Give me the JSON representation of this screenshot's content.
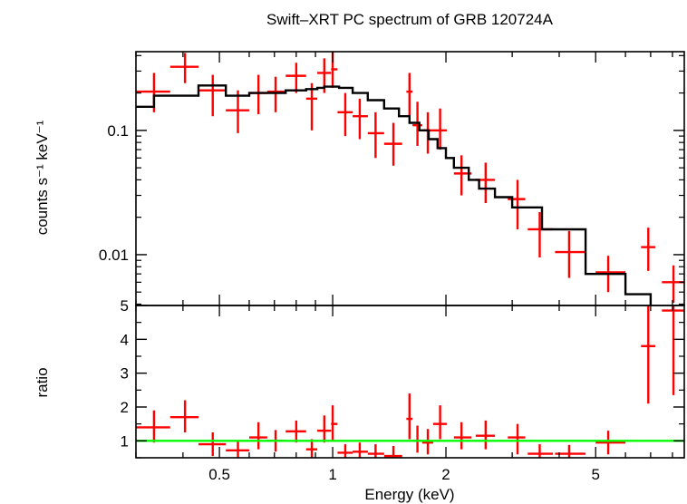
{
  "chart_data": {
    "type": "scatter",
    "title": "Swift–XRT PC spectrum of GRB 120724A",
    "xlabel": "Energy (keV)",
    "x_scale": "log",
    "xlim": [
      0.3,
      8.6
    ],
    "x_ticks": [
      {
        "value": 0.5,
        "label": "0.5"
      },
      {
        "value": 1,
        "label": "1"
      },
      {
        "value": 2,
        "label": "2"
      },
      {
        "value": 5,
        "label": "5"
      }
    ],
    "colors": {
      "data": "#ff0000",
      "model": "#000000",
      "unity": "#00ff00",
      "axes": "#000000"
    },
    "panels": [
      {
        "name": "spectrum",
        "ylabel": "counts s⁻¹ keV⁻¹",
        "y_scale": "log",
        "ylim": [
          0.0039,
          0.43
        ],
        "y_ticks": [
          {
            "value": 0.1,
            "label": "0.1"
          },
          {
            "value": 0.01,
            "label": "0.01"
          }
        ],
        "series": [
          {
            "kind": "errorbar",
            "points": [
              {
                "x": 0.335,
                "xlo": 0.3,
                "xhi": 0.37,
                "y": 0.205,
                "ylo": 0.14,
                "yhi": 0.29
              },
              {
                "x": 0.405,
                "xlo": 0.37,
                "xhi": 0.44,
                "y": 0.325,
                "ylo": 0.24,
                "yhi": 0.42
              },
              {
                "x": 0.48,
                "xlo": 0.44,
                "xhi": 0.52,
                "y": 0.21,
                "ylo": 0.13,
                "yhi": 0.28
              },
              {
                "x": 0.56,
                "xlo": 0.52,
                "xhi": 0.6,
                "y": 0.145,
                "ylo": 0.095,
                "yhi": 0.21
              },
              {
                "x": 0.635,
                "xlo": 0.6,
                "xhi": 0.67,
                "y": 0.2,
                "ylo": 0.135,
                "yhi": 0.28
              },
              {
                "x": 0.705,
                "xlo": 0.67,
                "xhi": 0.75,
                "y": 0.205,
                "ylo": 0.14,
                "yhi": 0.27
              },
              {
                "x": 0.8,
                "xlo": 0.75,
                "xhi": 0.85,
                "y": 0.275,
                "ylo": 0.2,
                "yhi": 0.35
              },
              {
                "x": 0.88,
                "xlo": 0.85,
                "xhi": 0.91,
                "y": 0.18,
                "ylo": 0.1,
                "yhi": 0.24
              },
              {
                "x": 0.95,
                "xlo": 0.91,
                "xhi": 0.99,
                "y": 0.29,
                "ylo": 0.2,
                "yhi": 0.38
              },
              {
                "x": 1.0,
                "xlo": 0.99,
                "xhi": 1.03,
                "y": 0.31,
                "ylo": 0.22,
                "yhi": 0.43
              },
              {
                "x": 1.08,
                "xlo": 1.03,
                "xhi": 1.13,
                "y": 0.14,
                "ylo": 0.09,
                "yhi": 0.2
              },
              {
                "x": 1.18,
                "xlo": 1.13,
                "xhi": 1.24,
                "y": 0.13,
                "ylo": 0.085,
                "yhi": 0.18
              },
              {
                "x": 1.3,
                "xlo": 1.24,
                "xhi": 1.37,
                "y": 0.095,
                "ylo": 0.06,
                "yhi": 0.14
              },
              {
                "x": 1.45,
                "xlo": 1.37,
                "xhi": 1.53,
                "y": 0.078,
                "ylo": 0.052,
                "yhi": 0.115
              },
              {
                "x": 1.6,
                "xlo": 1.57,
                "xhi": 1.63,
                "y": 0.205,
                "ylo": 0.13,
                "yhi": 0.29
              },
              {
                "x": 1.68,
                "xlo": 1.63,
                "xhi": 1.73,
                "y": 0.11,
                "ylo": 0.075,
                "yhi": 0.17
              },
              {
                "x": 1.79,
                "xlo": 1.73,
                "xhi": 1.85,
                "y": 0.1,
                "ylo": 0.065,
                "yhi": 0.14
              },
              {
                "x": 1.93,
                "xlo": 1.85,
                "xhi": 2.01,
                "y": 0.1,
                "ylo": 0.07,
                "yhi": 0.15
              },
              {
                "x": 2.2,
                "xlo": 2.1,
                "xhi": 2.34,
                "y": 0.045,
                "ylo": 0.03,
                "yhi": 0.063
              },
              {
                "x": 2.55,
                "xlo": 2.4,
                "xhi": 2.7,
                "y": 0.04,
                "ylo": 0.026,
                "yhi": 0.055
              },
              {
                "x": 3.1,
                "xlo": 2.92,
                "xhi": 3.25,
                "y": 0.028,
                "ylo": 0.016,
                "yhi": 0.04
              },
              {
                "x": 3.55,
                "xlo": 3.3,
                "xhi": 3.85,
                "y": 0.016,
                "ylo": 0.0095,
                "yhi": 0.022
              },
              {
                "x": 4.25,
                "xlo": 3.9,
                "xhi": 4.7,
                "y": 0.0105,
                "ylo": 0.0065,
                "yhi": 0.0155
              },
              {
                "x": 5.4,
                "xlo": 5.0,
                "xhi": 6.0,
                "y": 0.0072,
                "ylo": 0.005,
                "yhi": 0.0098
              },
              {
                "x": 6.9,
                "xlo": 6.6,
                "xhi": 7.2,
                "y": 0.0115,
                "ylo": 0.0074,
                "yhi": 0.0165
              },
              {
                "x": 8.05,
                "xlo": 7.5,
                "xhi": 8.6,
                "y": 0.006,
                "ylo": 0.0041,
                "yhi": 0.0082
              }
            ]
          },
          {
            "kind": "model-step",
            "edges": [
              0.3,
              0.335,
              0.44,
              0.52,
              0.6,
              0.75,
              0.85,
              0.91,
              0.95,
              1.04,
              1.13,
              1.24,
              1.37,
              1.5,
              1.6,
              1.7,
              1.8,
              1.9,
              2.0,
              2.1,
              2.3,
              2.45,
              2.7,
              3.0,
              3.6,
              4.7,
              6.0,
              7.0
            ],
            "values": [
              0.155,
              0.19,
              0.23,
              0.19,
              0.2,
              0.21,
              0.215,
              0.22,
              0.225,
              0.22,
              0.2,
              0.175,
              0.15,
              0.13,
              0.115,
              0.1,
              0.085,
              0.072,
              0.06,
              0.05,
              0.04,
              0.034,
              0.029,
              0.024,
              0.016,
              0.007,
              0.0048
            ]
          }
        ]
      },
      {
        "name": "ratio",
        "ylabel": "ratio",
        "y_scale": "linear",
        "ylim": [
          0.5,
          5.0
        ],
        "y_ticks": [
          {
            "value": 1,
            "label": "1"
          },
          {
            "value": 2,
            "label": "2"
          },
          {
            "value": 3,
            "label": "3"
          },
          {
            "value": 4,
            "label": "4"
          },
          {
            "value": 5,
            "label": "5"
          }
        ],
        "series": [
          {
            "kind": "errorbar",
            "points": [
              {
                "x": 0.335,
                "xlo": 0.3,
                "xhi": 0.37,
                "y": 1.4,
                "ylo": 0.95,
                "yhi": 1.9
              },
              {
                "x": 0.405,
                "xlo": 0.37,
                "xhi": 0.44,
                "y": 1.7,
                "ylo": 1.25,
                "yhi": 2.2
              },
              {
                "x": 0.48,
                "xlo": 0.44,
                "xhi": 0.52,
                "y": 0.9,
                "ylo": 0.55,
                "yhi": 1.25
              },
              {
                "x": 0.56,
                "xlo": 0.52,
                "xhi": 0.6,
                "y": 0.72,
                "ylo": 0.5,
                "yhi": 1.0
              },
              {
                "x": 0.635,
                "xlo": 0.6,
                "xhi": 0.67,
                "y": 1.1,
                "ylo": 0.75,
                "yhi": 1.55
              },
              {
                "x": 0.705,
                "xlo": 0.67,
                "xhi": 0.75,
                "y": 1.0,
                "ylo": 0.68,
                "yhi": 1.32
              },
              {
                "x": 0.8,
                "xlo": 0.75,
                "xhi": 0.85,
                "y": 1.28,
                "ylo": 0.95,
                "yhi": 1.6
              },
              {
                "x": 0.88,
                "xlo": 0.85,
                "xhi": 0.91,
                "y": 0.75,
                "ylo": 0.5,
                "yhi": 1.05
              },
              {
                "x": 0.95,
                "xlo": 0.91,
                "xhi": 0.99,
                "y": 1.3,
                "ylo": 0.95,
                "yhi": 1.75
              },
              {
                "x": 1.0,
                "xlo": 0.99,
                "xhi": 1.03,
                "y": 1.5,
                "ylo": 1.0,
                "yhi": 2.05
              },
              {
                "x": 1.08,
                "xlo": 1.03,
                "xhi": 1.13,
                "y": 0.65,
                "ylo": 0.5,
                "yhi": 0.9
              },
              {
                "x": 1.18,
                "xlo": 1.13,
                "xhi": 1.24,
                "y": 0.68,
                "ylo": 0.5,
                "yhi": 0.95
              },
              {
                "x": 1.3,
                "xlo": 1.24,
                "xhi": 1.37,
                "y": 0.62,
                "ylo": 0.5,
                "yhi": 0.9
              },
              {
                "x": 1.45,
                "xlo": 1.37,
                "xhi": 1.53,
                "y": 0.55,
                "ylo": 0.5,
                "yhi": 0.85
              },
              {
                "x": 1.6,
                "xlo": 1.57,
                "xhi": 1.63,
                "y": 1.65,
                "ylo": 1.05,
                "yhi": 2.4
              },
              {
                "x": 1.68,
                "xlo": 1.63,
                "xhi": 1.73,
                "y": 1.0,
                "ylo": 0.65,
                "yhi": 1.45
              },
              {
                "x": 1.79,
                "xlo": 1.73,
                "xhi": 1.85,
                "y": 0.95,
                "ylo": 0.6,
                "yhi": 1.35
              },
              {
                "x": 1.93,
                "xlo": 1.85,
                "xhi": 2.01,
                "y": 1.5,
                "ylo": 1.05,
                "yhi": 2.05
              },
              {
                "x": 2.2,
                "xlo": 2.1,
                "xhi": 2.34,
                "y": 1.1,
                "ylo": 0.75,
                "yhi": 1.55
              },
              {
                "x": 2.55,
                "xlo": 2.4,
                "xhi": 2.7,
                "y": 1.15,
                "ylo": 0.75,
                "yhi": 1.6
              },
              {
                "x": 3.1,
                "xlo": 2.92,
                "xhi": 3.25,
                "y": 1.1,
                "ylo": 0.6,
                "yhi": 1.5
              },
              {
                "x": 3.55,
                "xlo": 3.3,
                "xhi": 3.85,
                "y": 0.62,
                "ylo": 0.5,
                "yhi": 0.9
              },
              {
                "x": 4.25,
                "xlo": 3.9,
                "xhi": 4.7,
                "y": 0.62,
                "ylo": 0.5,
                "yhi": 0.88
              },
              {
                "x": 5.4,
                "xlo": 5.0,
                "xhi": 6.0,
                "y": 0.95,
                "ylo": 0.6,
                "yhi": 1.3
              },
              {
                "x": 6.9,
                "xlo": 6.6,
                "xhi": 7.2,
                "y": 3.8,
                "ylo": 2.1,
                "yhi": 5.0
              },
              {
                "x": 8.05,
                "xlo": 7.5,
                "xhi": 8.6,
                "y": 4.85,
                "ylo": 2.35,
                "yhi": 5.0
              }
            ]
          },
          {
            "kind": "reference-line",
            "y": 1.0
          }
        ]
      }
    ]
  }
}
